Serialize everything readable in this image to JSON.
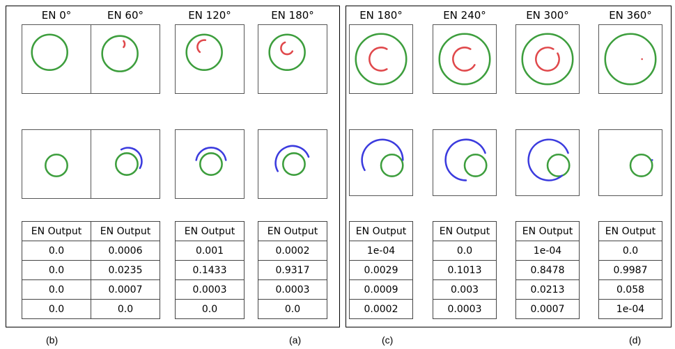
{
  "colors": {
    "outer_circle": "#3d9e3d",
    "inner_arc": "#e0484b",
    "lower_arc": "#3b3bde",
    "border": "#000000"
  },
  "table_header": "EN Output",
  "columns": [
    {
      "title": "EN 0°",
      "values": [
        "0.0",
        "0.0",
        "0.0",
        "0.0"
      ]
    },
    {
      "title": "EN 60°",
      "values": [
        "0.0006",
        "0.0235",
        "0.0007",
        "0.0"
      ]
    },
    {
      "title": "EN 120°",
      "values": [
        "0.001",
        "0.1433",
        "0.0003",
        "0.0"
      ]
    },
    {
      "title": "EN 180°",
      "values": [
        "0.0002",
        "0.9317",
        "0.0003",
        "0.0"
      ]
    },
    {
      "title": "EN 180°",
      "values": [
        "1e-04",
        "0.0029",
        "0.0009",
        "0.0002"
      ]
    },
    {
      "title": "EN 240°",
      "values": [
        "0.0",
        "0.1013",
        "0.003",
        "0.0003"
      ]
    },
    {
      "title": "EN 300°",
      "values": [
        "1e-04",
        "0.8478",
        "0.0213",
        "0.0007"
      ]
    },
    {
      "title": "EN 360°",
      "values": [
        "0.0",
        "0.9987",
        "0.058",
        "1e-04"
      ]
    }
  ],
  "captions": {
    "b": "(b)",
    "a": "(a)",
    "c": "(c)",
    "d": "(d)"
  }
}
